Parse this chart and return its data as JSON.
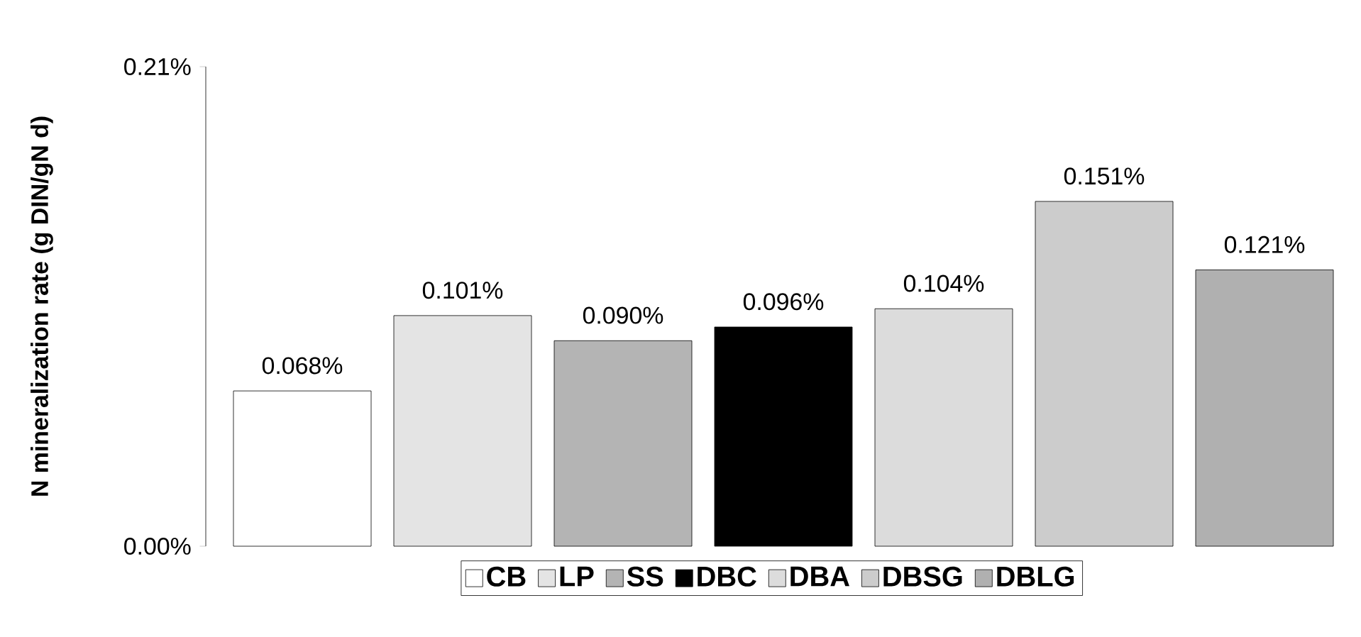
{
  "chart_data": {
    "type": "bar",
    "ylabel": "N mineralization rate (g DIN/gN d)",
    "categories": [
      null
    ],
    "series": [
      {
        "name": "CB",
        "color": "#ffffff",
        "values": [
          0.068
        ],
        "value_labels": [
          "0.068%"
        ]
      },
      {
        "name": "LP",
        "color": "#e4e4e4",
        "values": [
          0.101
        ],
        "value_labels": [
          "0.101%"
        ]
      },
      {
        "name": "SS",
        "color": "#b4b4b4",
        "values": [
          0.09
        ],
        "value_labels": [
          "0.090%"
        ]
      },
      {
        "name": "DBC",
        "color": "#000000",
        "values": [
          0.096
        ],
        "value_labels": [
          "0.096%"
        ]
      },
      {
        "name": "DBA",
        "color": "#dcdcdc",
        "values": [
          0.104
        ],
        "value_labels": [
          "0.104%"
        ]
      },
      {
        "name": "DBSG",
        "color": "#cccccc",
        "values": [
          0.151
        ],
        "value_labels": [
          "0.151%"
        ]
      },
      {
        "name": "DBLG",
        "color": "#b0b0b0",
        "values": [
          0.121
        ],
        "value_labels": [
          "0.121%"
        ]
      }
    ],
    "ylim": [
      0,
      0.21
    ],
    "yticks": [
      {
        "value": 0,
        "label": "0.00%"
      },
      {
        "value": 0.21,
        "label": "0.21%"
      }
    ],
    "tick_labels": "y",
    "legend": "bottom"
  }
}
